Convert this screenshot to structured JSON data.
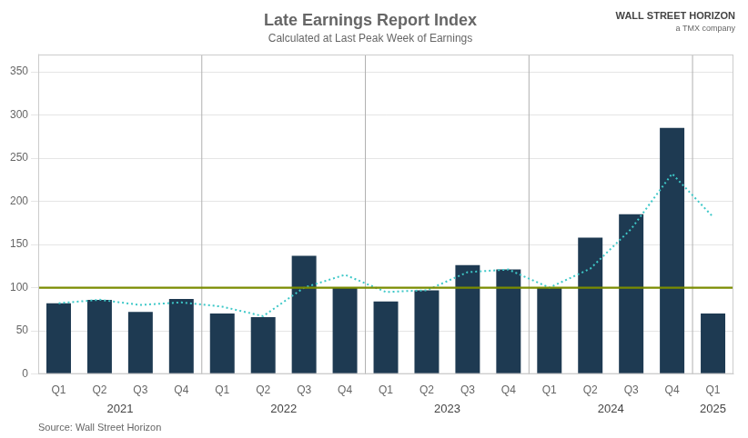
{
  "chart_data": {
    "type": "bar",
    "title": "Late Earnings Report Index",
    "subtitle": "Calculated at Last Peak Week of Earnings",
    "source": "Source: Wall Street Horizon",
    "annotations": [
      "WALL STREET HORIZON",
      "a TMX company"
    ],
    "categories": [
      "Q1",
      "Q2",
      "Q3",
      "Q4",
      "Q1",
      "Q2",
      "Q3",
      "Q4",
      "Q1",
      "Q2",
      "Q3",
      "Q4",
      "Q1",
      "Q2",
      "Q3",
      "Q4",
      "Q1"
    ],
    "groups": [
      {
        "label": "2021",
        "size": 4
      },
      {
        "label": "2022",
        "size": 4
      },
      {
        "label": "2023",
        "size": 4
      },
      {
        "label": "2024",
        "size": 4
      },
      {
        "label": "2025",
        "size": 1
      }
    ],
    "series": [
      {
        "color": "#1e3a52",
        "values": [
          82,
          86,
          72,
          87,
          70,
          66,
          137,
          100,
          84,
          97,
          126,
          121,
          100,
          158,
          185,
          285,
          70
        ]
      },
      {
        "type": "line",
        "color": "#3ec8c8",
        "line_style": "dotted",
        "values": [
          82,
          86,
          80,
          83,
          78,
          67,
          100,
          115,
          95,
          97,
          118,
          121,
          100,
          122,
          168,
          232,
          182
        ]
      }
    ],
    "reference_line": {
      "value": 100,
      "color": "#7a8c00"
    },
    "ylim": [
      0,
      370
    ],
    "yticks": [
      0,
      50,
      100,
      150,
      200,
      250,
      300,
      350
    ],
    "grid": true
  }
}
